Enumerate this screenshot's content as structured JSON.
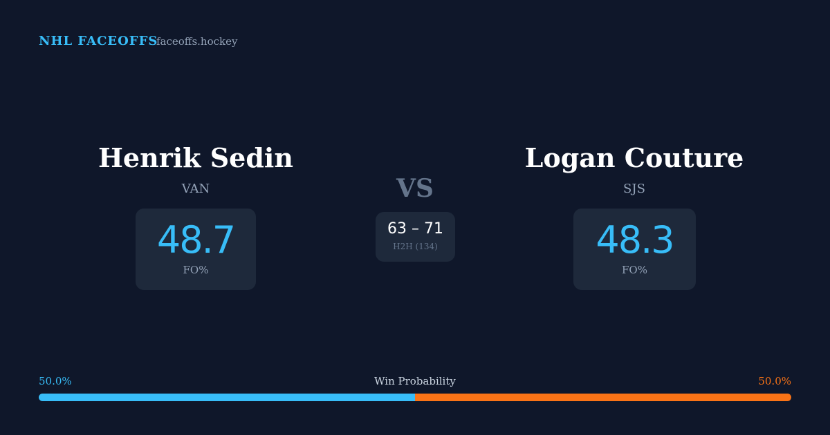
{
  "header": {
    "brand": "NHL FACEOFFS",
    "site": "faceoffs.hockey"
  },
  "players": [
    {
      "name": "Henrik Sedin",
      "team": "VAN",
      "fo_pct": 48.7,
      "fo_label": "FO%"
    },
    {
      "name": "Logan Couture",
      "team": "SJS",
      "fo_pct": 48.3,
      "fo_label": "FO%"
    }
  ],
  "vs": "VS",
  "h2h": {
    "score": "63 – 71",
    "label": "H2H (134)"
  },
  "win_probability": {
    "title": "Win Probability",
    "left": {
      "value": 50.0,
      "label": "50.0%",
      "color": "#38bdf8"
    },
    "right": {
      "value": 50.0,
      "label": "50.0%",
      "color": "#f97316"
    }
  }
}
